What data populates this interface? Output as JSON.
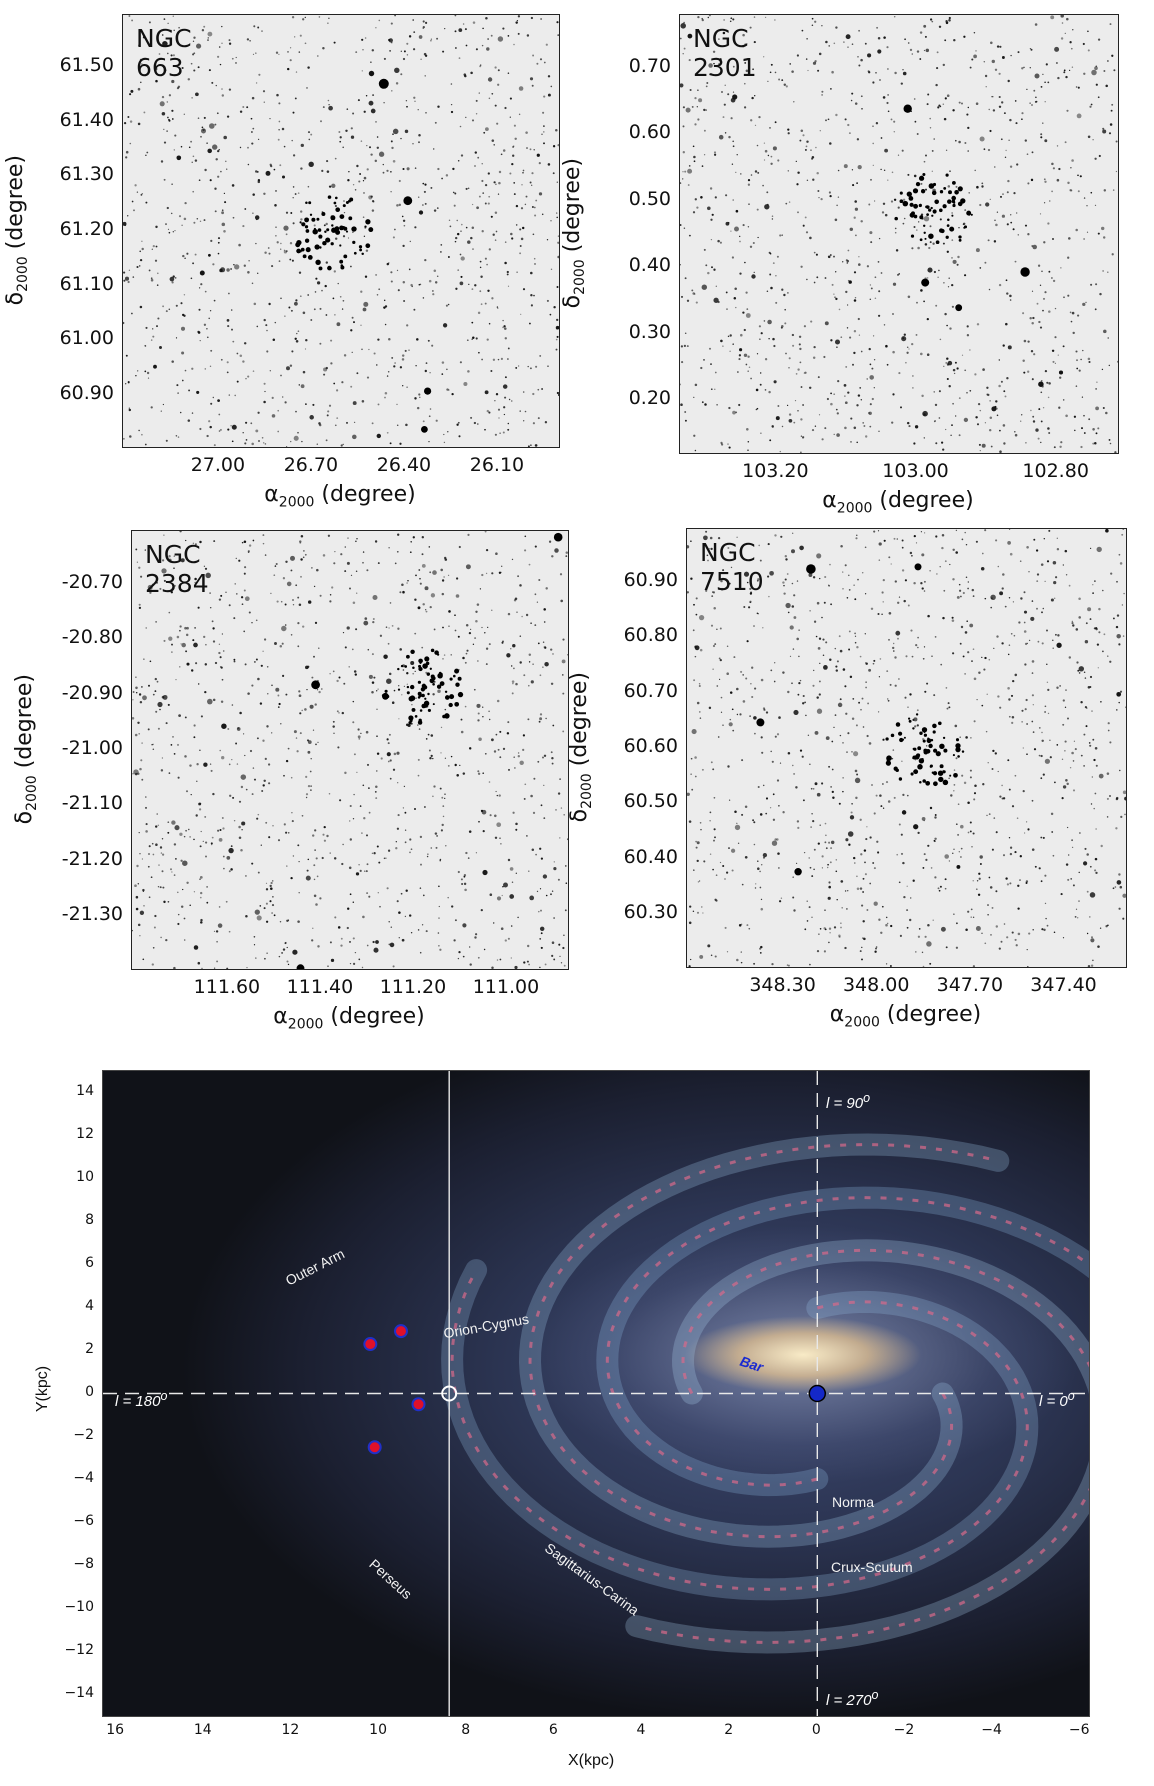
{
  "clusters": [
    {
      "name": "NGC 663",
      "yticks": [
        "61.50",
        "61.40",
        "61.30",
        "61.20",
        "61.10",
        "61.00",
        "60.90"
      ],
      "xticks": [
        "27.00",
        "26.70",
        "26.40",
        "26.10"
      ]
    },
    {
      "name": "NGC 2301",
      "yticks": [
        "0.70",
        "0.60",
        "0.50",
        "0.40",
        "0.30",
        "0.20"
      ],
      "xticks": [
        "103.20",
        "103.00",
        "102.80"
      ]
    },
    {
      "name": "NGC 2384",
      "yticks": [
        "-20.70",
        "-20.80",
        "-20.90",
        "-21.00",
        "-21.10",
        "-21.20",
        "-21.30"
      ],
      "xticks": [
        "111.60",
        "111.40",
        "111.20",
        "111.00"
      ]
    },
    {
      "name": "NGC 7510",
      "yticks": [
        "60.90",
        "60.80",
        "60.70",
        "60.60",
        "60.50",
        "60.40",
        "60.30"
      ],
      "xticks": [
        "348.30",
        "348.00",
        "347.70",
        "347.40"
      ]
    }
  ],
  "axis_labels": {
    "ra_base": "α",
    "ra_sub": "2000",
    "ra_unit": " (degree)",
    "dec_base": "δ",
    "dec_sub": "2000",
    "dec_unit": " (degree)"
  },
  "galaxy_map": {
    "xlabel": "X(kpc)",
    "ylabel": "Y(kpc)",
    "xticks": [
      "16",
      "14",
      "12",
      "10",
      "8",
      "6",
      "4",
      "2",
      "0",
      "−2",
      "−4",
      "−6"
    ],
    "yticks": [
      "14",
      "12",
      "10",
      "8",
      "6",
      "4",
      "2",
      "0",
      "−2",
      "−4",
      "−6",
      "−8",
      "−10",
      "−12",
      "−14"
    ],
    "arm_labels": [
      "Outer Arm",
      "Orion-Cygnus",
      "Perseus",
      "Sagittarius-Carina",
      "Norma",
      "Crux-Scutum"
    ],
    "bar_label": "Bar",
    "l_labels": {
      "l90": "l = 90",
      "l180": "l = 180",
      "l0": "l = 0",
      "l270": "l = 270",
      "deg": "o"
    },
    "colors": {
      "cluster_fill": "#e0102a",
      "cluster_edge": "#2030c8",
      "gc_fill": "#1428c8",
      "sun": "#ffffff"
    }
  },
  "chart_data": {
    "type": "scatter",
    "xlabel": "X(kpc)",
    "ylabel": "Y(kpc)",
    "xlim": [
      16.3,
      -6.2
    ],
    "ylim": [
      -15,
      15
    ],
    "series": [
      {
        "values": [
          {
            "x": 10.2,
            "y": 2.3
          },
          {
            "x": 9.5,
            "y": 2.9
          },
          {
            "x": 9.1,
            "y": -0.5
          },
          {
            "x": 10.1,
            "y": -2.5
          }
        ]
      },
      {
        "values": [
          {
            "x": 8.4,
            "y": 0.0
          }
        ]
      },
      {
        "values": [
          {
            "x": 0.0,
            "y": 0.0
          }
        ]
      }
    ],
    "reference_lines": {
      "vertical_solid_x": 8.4,
      "vertical_dashed_x": 0,
      "horizontal_dashed_y": 0
    }
  }
}
